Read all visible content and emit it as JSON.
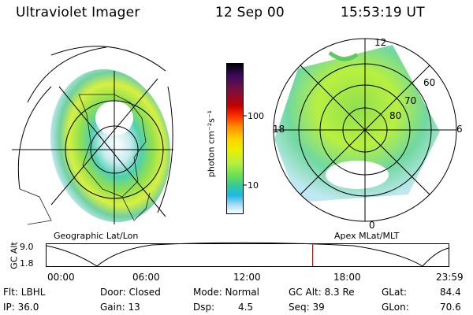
{
  "header": {
    "title": "Ultraviolet Imager",
    "date": "12 Sep 00",
    "time": "15:53:19 UT"
  },
  "left_panel": {
    "caption": "Geographic Lat/Lon"
  },
  "right_panel": {
    "caption": "Apex MLat/MLT",
    "mlt_labels": {
      "top": "12",
      "right": "6",
      "bottom": "0",
      "left": "18"
    },
    "lat_labels": [
      "60",
      "70",
      "80"
    ]
  },
  "colorbar": {
    "unit_label": "photon cm⁻²s⁻¹",
    "ticks": [
      "100",
      "10"
    ],
    "colors": [
      "#000000",
      "#3a0a5c",
      "#7a1040",
      "#c00000",
      "#ff3000",
      "#ff8c00",
      "#ffd000",
      "#e8f000",
      "#b8f040",
      "#70e050",
      "#30c8a0",
      "#20b8e8",
      "#a8dcf0",
      "#ffffff"
    ]
  },
  "timeline": {
    "ylabel": "GC Alt",
    "ymax": "9.0",
    "ymin": "1.8",
    "ticks": [
      "00:00",
      "06:00",
      "12:00",
      "18:00",
      "23:59"
    ],
    "current_time_fraction": 0.662
  },
  "footer": {
    "flt": "Flt: LBHL",
    "ip": "IP: 36.0",
    "door": "Door: Closed",
    "gain": "Gain: 13",
    "mode": "Mode: Normal",
    "dsp_label": "Dsp:",
    "dsp_val": "4.5",
    "gcalt": "GC Alt: 8.3 Re",
    "seq": "Seq: 39",
    "glat_label": "GLat:",
    "glat_val": "84.4",
    "glon_label": "GLon:",
    "glon_val": "70.6"
  }
}
